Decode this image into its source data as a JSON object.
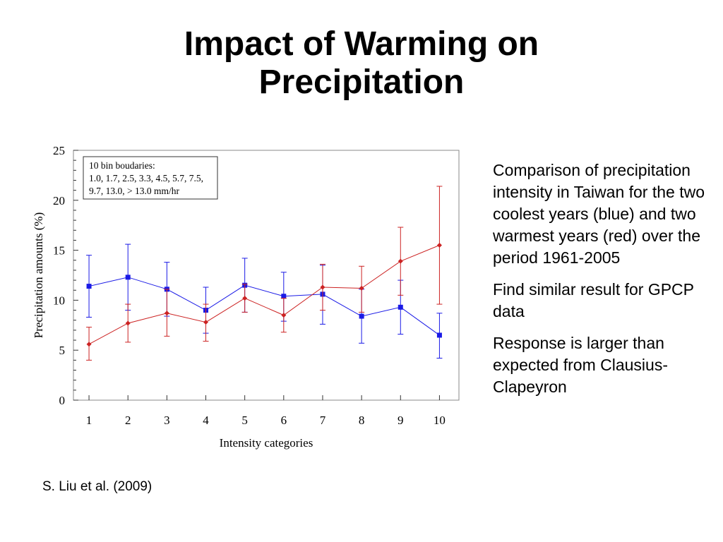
{
  "slide": {
    "title_line1": "Impact of Warming on",
    "title_line2": "Precipitation",
    "bullets": [
      "Comparison of precipitation intensity in Taiwan for the two coolest years (blue) and two warmest years (red) over the period 1961-2005",
      "Find similar result for GPCP data",
      "Response is larger than expected from Clausius-Clapeyron"
    ],
    "citation": "S. Liu et al. (2009)"
  },
  "chart_data": {
    "type": "line",
    "title": "",
    "xlabel": "Intensity categories",
    "ylabel": "Precipitation amounts (%)",
    "x": [
      1,
      2,
      3,
      4,
      5,
      6,
      7,
      8,
      9,
      10
    ],
    "xlim": [
      0.6,
      10.5
    ],
    "ylim": [
      0,
      25
    ],
    "yticks": [
      0,
      5,
      10,
      15,
      20,
      25
    ],
    "grid": false,
    "annotation_lines": [
      "10 bin boudaries:",
      "1.0, 1.7, 2.5, 3.3, 4.5, 5.7, 7.5,",
      "9.7, 13.0, > 13.0 mm/hr"
    ],
    "series": [
      {
        "color": "#1a1ae6",
        "marker": "square",
        "values": [
          11.4,
          12.3,
          11.1,
          9.0,
          11.5,
          10.4,
          10.6,
          8.4,
          9.3,
          6.5
        ],
        "error_low": [
          8.3,
          9.0,
          8.4,
          6.7,
          8.8,
          7.9,
          7.6,
          5.7,
          6.6,
          4.2
        ],
        "error_high": [
          14.5,
          15.6,
          13.8,
          11.3,
          14.2,
          12.8,
          13.5,
          11.1,
          12.0,
          8.7
        ]
      },
      {
        "color": "#cc2222",
        "marker": "diamond",
        "values": [
          5.6,
          7.7,
          8.7,
          7.8,
          10.2,
          8.5,
          11.3,
          11.2,
          13.9,
          15.5
        ],
        "error_low": [
          4.0,
          5.8,
          6.4,
          5.9,
          8.8,
          6.8,
          9.0,
          8.8,
          10.5,
          9.6
        ],
        "error_high": [
          7.3,
          9.6,
          11.1,
          9.6,
          11.6,
          10.2,
          13.6,
          13.4,
          17.3,
          21.4
        ]
      }
    ]
  }
}
